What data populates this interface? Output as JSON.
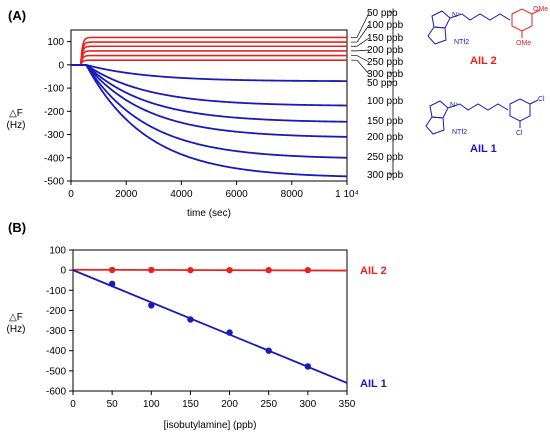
{
  "colors": {
    "red": "#e8231f",
    "blue": "#1a1aba"
  },
  "panel_a": {
    "label": "(A)"
  },
  "panel_b": {
    "label": "(B)"
  },
  "molecules": {
    "ail2": {
      "name": "AIL 2",
      "color": "#e8231f",
      "ntf2": "NTf2",
      "substituent": "OMe"
    },
    "ail1": {
      "name": "AIL 1",
      "color": "#1a1aba",
      "ntf2": "NTf2",
      "substituent": "Cl"
    }
  },
  "chart_data": [
    {
      "type": "line",
      "panel": "(A)",
      "xlabel": "time (sec)",
      "ylabel": "△F\n(Hz)",
      "xlim": [
        0,
        10000
      ],
      "ylim": [
        -500,
        150
      ],
      "x_ticks": [
        0,
        2000,
        4000,
        6000,
        8000,
        10000
      ],
      "x_tick_labels": [
        "0",
        "2000",
        "4000",
        "6000",
        "8000",
        "1 10⁴"
      ],
      "y_ticks": [
        100,
        0,
        -100,
        -200,
        -300,
        -400,
        -500
      ],
      "grid": false,
      "red_series": [
        {
          "name": "50 ppb",
          "plateau": 118
        },
        {
          "name": "100 ppb",
          "plateau": 98
        },
        {
          "name": "150 ppb",
          "plateau": 80
        },
        {
          "name": "200 ppb",
          "plateau": 60
        },
        {
          "name": "250 ppb",
          "plateau": 40
        },
        {
          "name": "300 ppb",
          "plateau": 20
        }
      ],
      "blue_series": [
        {
          "name": "50 ppb",
          "final": -70
        },
        {
          "name": "100 ppb",
          "final": -175
        },
        {
          "name": "150 ppb",
          "final": -245
        },
        {
          "name": "200 ppb",
          "final": -310
        },
        {
          "name": "250 ppb",
          "final": -400
        },
        {
          "name": "300 ppb",
          "final": -480
        }
      ],
      "red_bracket_labels": [
        "50 ppb",
        "100 ppb",
        "150 ppb",
        "200 ppb",
        "250 ppb",
        "300 ppb"
      ],
      "blue_bracket_labels": [
        "50 ppb",
        "100 ppb",
        "150 ppb",
        "200 ppb",
        "250 ppb",
        "300 ppb"
      ]
    },
    {
      "type": "scatter",
      "panel": "(B)",
      "xlabel": "[isobutylamine] (ppb)",
      "ylabel": "△F\n(Hz)",
      "xlim": [
        0,
        350
      ],
      "ylim": [
        -600,
        100
      ],
      "x_ticks": [
        0,
        50,
        100,
        150,
        200,
        250,
        300,
        350
      ],
      "y_ticks": [
        100,
        0,
        -100,
        -200,
        -300,
        -400,
        -500,
        -600
      ],
      "grid": false,
      "series": [
        {
          "name": "AIL 2",
          "color": "#e8231f",
          "points": [
            [
              50,
              1
            ],
            [
              100,
              1
            ],
            [
              150,
              0
            ],
            [
              200,
              0
            ],
            [
              250,
              0
            ],
            [
              300,
              0
            ]
          ],
          "fit": {
            "x": [
              0,
              350
            ],
            "y": [
              2,
              -2
            ]
          }
        },
        {
          "name": "AIL 1",
          "color": "#1a1aba",
          "points": [
            [
              50,
              -68
            ],
            [
              100,
              -175
            ],
            [
              150,
              -245
            ],
            [
              200,
              -310
            ],
            [
              250,
              -400
            ],
            [
              300,
              -478
            ]
          ],
          "fit": {
            "x": [
              0,
              350
            ],
            "y": [
              0,
              -560
            ]
          }
        }
      ]
    }
  ]
}
